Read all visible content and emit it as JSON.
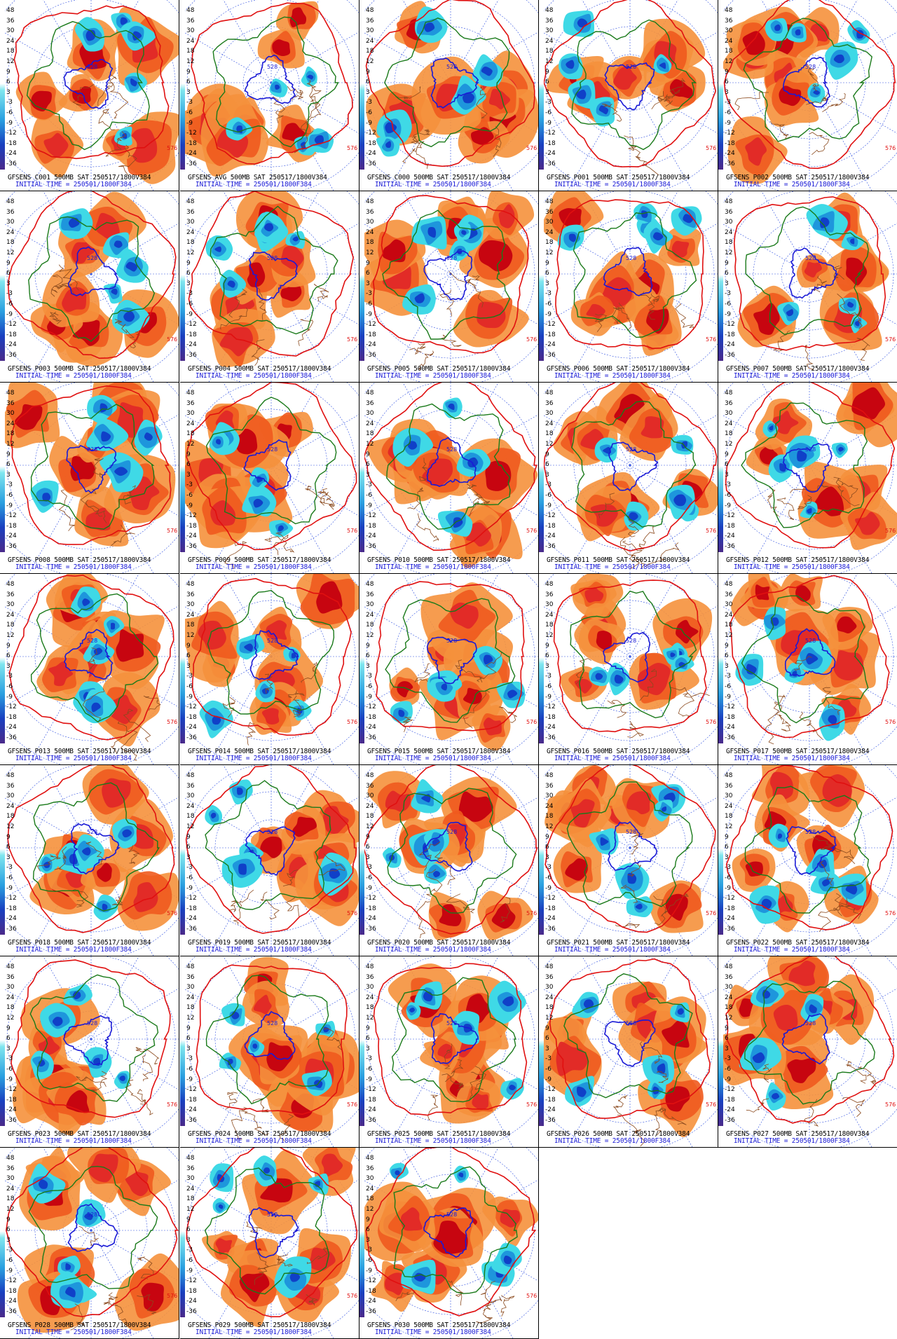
{
  "colorbar": {
    "labels": [
      "48",
      "36",
      "30",
      "24",
      "18",
      "12",
      "9",
      "6",
      "3",
      "-3",
      "-6",
      "-9",
      "-12",
      "-18",
      "-24",
      "-36"
    ],
    "colors": {
      "strong_positive": "#c40010",
      "positive": "#e02828",
      "mid_positive": "#f05a1e",
      "weak_positive": "#f5913c",
      "weak_negative": "#3fd9e6",
      "negative": "#1e96dc",
      "strong_negative": "#1040c8",
      "height_contour_576": "#e01010",
      "height_contour_552": "#1a7a1a",
      "height_contour_528": "#1a1ad6",
      "coastline": "#8b4a1e",
      "gridline": "#3050e0"
    }
  },
  "contour_labels": [
    "576",
    "552",
    "528"
  ],
  "panels": [
    {
      "title": "GFSENS C001 500MB SAT 250517/1800V384",
      "init": "INITIAL TIME = 250501/1800F384"
    },
    {
      "title": "GFSENS AVG 500MB SAT 250517/1800V384",
      "init": "INITIAL TIME = 250501/1800F384"
    },
    {
      "title": "GFSENS C000 500MB SAT 250517/1800V384",
      "init": "INITIAL TIME = 250501/1800F384"
    },
    {
      "title": "GFSENS P001 500MB SAT 250517/1800V384",
      "init": "INITIAL TIME = 250501/1800F384"
    },
    {
      "title": "GFSENS P002 500MB SAT 250517/1800V384",
      "init": "INITIAL TIME = 250501/1800F384"
    },
    {
      "title": "GFSENS P003 500MB SAT 250517/1800V384",
      "init": "INITIAL TIME = 250501/1800F384"
    },
    {
      "title": "GFSENS P004 500MB SAT 250517/1800V384",
      "init": "INITIAL TIME = 250501/1800F384"
    },
    {
      "title": "GFSENS P005 500MB SAT 250517/1800V384",
      "init": "INITIAL TIME = 250501/1800F384"
    },
    {
      "title": "GFSENS P006 500MB SAT 250517/1800V384",
      "init": "INITIAL TIME = 250501/1800F384"
    },
    {
      "title": "GFSENS P007 500MB SAT 250517/1800V384",
      "init": "INITIAL TIME = 250501/1800F384"
    },
    {
      "title": "GFSENS P008 500MB SAT 250517/1800V384",
      "init": "INITIAL TIME = 250501/1800F384"
    },
    {
      "title": "GFSENS P009 500MB SAT 250517/1800V384",
      "init": "INITIAL TIME = 250501/1800F384"
    },
    {
      "title": "GFSENS P010 500MB SAT 250517/1800V384",
      "init": "INITIAL TIME = 250501/1800F384"
    },
    {
      "title": "GFSENS P011 500MB SAT 250517/1800V384",
      "init": "INITIAL TIME = 250501/1800F384"
    },
    {
      "title": "GFSENS P012 500MB SAT 250517/1800V384",
      "init": "INITIAL TIME = 250501/1800F384"
    },
    {
      "title": "GFSENS P013 500MB SAT 250517/1800V384",
      "init": "INITIAL TIME = 250501/1800F384"
    },
    {
      "title": "GFSENS P014 500MB SAT 250517/1800V384",
      "init": "INITIAL TIME = 250501/1800F384"
    },
    {
      "title": "GFSENS P015 500MB SAT 250517/1800V384",
      "init": "INITIAL TIME = 250501/1800F384"
    },
    {
      "title": "GFSENS P016 500MB SAT 250517/1800V384",
      "init": "INITIAL TIME = 250501/1800F384"
    },
    {
      "title": "GFSENS P017 500MB SAT 250517/1800V384",
      "init": "INITIAL TIME = 250501/1800F384"
    },
    {
      "title": "GFSENS P018 500MB SAT 250517/1800V384",
      "init": "INITIAL TIME = 250501/1800F384"
    },
    {
      "title": "GFSENS P019 500MB SAT 250517/1800V384",
      "init": "INITIAL TIME = 250501/1800F384"
    },
    {
      "title": "GFSENS P020 500MB SAT 250517/1800V384",
      "init": "INITIAL TIME = 250501/1800F384"
    },
    {
      "title": "GFSENS P021 500MB SAT 250517/1800V384",
      "init": "INITIAL TIME = 250501/1800F384"
    },
    {
      "title": "GFSENS P022 500MB SAT 250517/1800V384",
      "init": "INITIAL TIME = 250501/1800F384"
    },
    {
      "title": "GFSENS P023 500MB SAT 250517/1800V384",
      "init": "INITIAL TIME = 250501/1800F384"
    },
    {
      "title": "GFSENS P024 500MB SAT 250517/1800V384",
      "init": "INITIAL TIME = 250501/1800F384"
    },
    {
      "title": "GFSENS P025 500MB SAT 250517/1800V384",
      "init": "INITIAL TIME = 250501/1800F384"
    },
    {
      "title": "GFSENS P026 500MB SAT 250517/1800V384",
      "init": "INITIAL TIME = 250501/1800F384"
    },
    {
      "title": "GFSENS P027 500MB SAT 250517/1800V384",
      "init": "INITIAL TIME = 250501/1800F384"
    },
    {
      "title": "GFSENS P028 500MB SAT 250517/1800V384",
      "init": "INITIAL TIME = 250501/1800F384"
    },
    {
      "title": "GFSENS P029 500MB SAT 250517/1800V384",
      "init": "INITIAL TIME = 250501/1800F384"
    },
    {
      "title": "GFSENS P030 500MB SAT 250517/1800V384",
      "init": "INITIAL TIME = 250501/1800F384"
    }
  ]
}
